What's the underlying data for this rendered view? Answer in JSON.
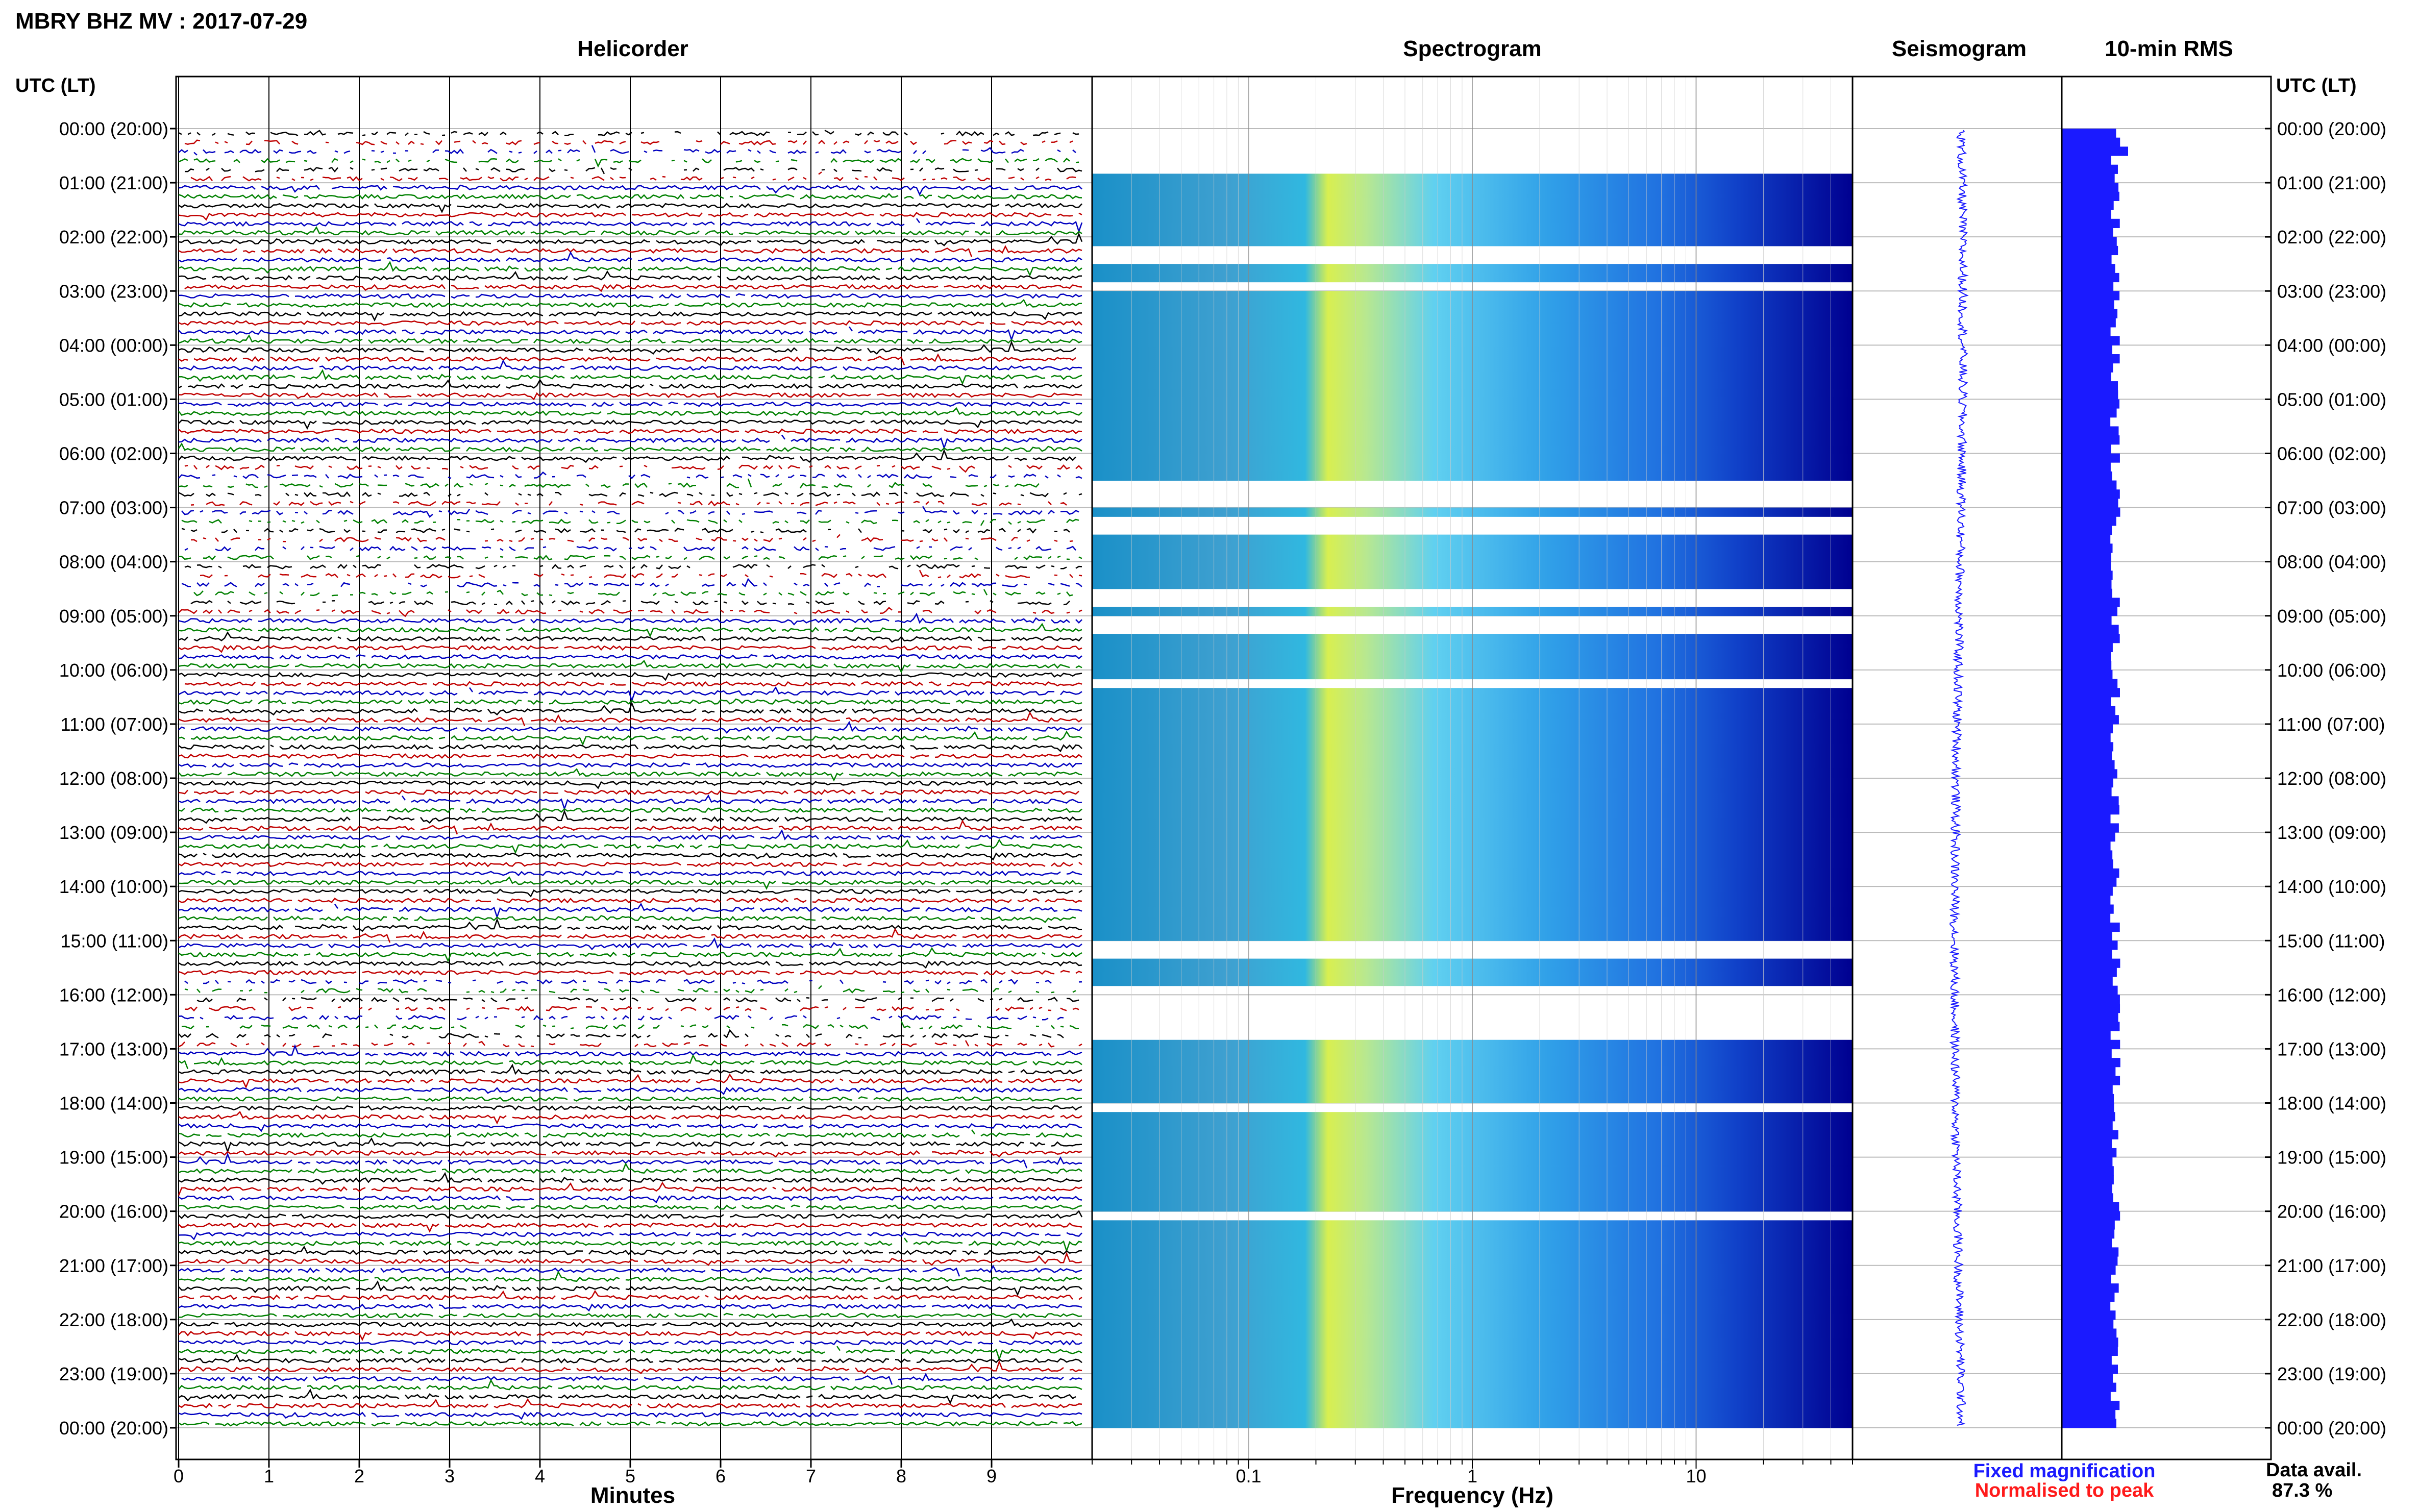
{
  "header": {
    "title": "MBRY BHZ MV : 2017-07-29"
  },
  "panels": {
    "helicorder": "Helicorder",
    "spectrogram": "Spectrogram",
    "seismogram": "Seismogram",
    "rms": "10-min RMS"
  },
  "axes": {
    "time_header_left": "UTC (LT)",
    "time_header_right": "UTC (LT)",
    "minutes_label": "Minutes",
    "frequency_label": "Frequency (Hz)",
    "minute_ticks": [
      "0",
      "1",
      "2",
      "3",
      "4",
      "5",
      "6",
      "7",
      "8",
      "9"
    ],
    "frequency_ticks": [
      "0.1",
      "1",
      "10"
    ],
    "hour_labels": [
      "00:00 (20:00)",
      "01:00 (21:00)",
      "02:00 (22:00)",
      "03:00 (23:00)",
      "04:00 (00:00)",
      "05:00 (01:00)",
      "06:00 (02:00)",
      "07:00 (03:00)",
      "08:00 (04:00)",
      "09:00 (05:00)",
      "10:00 (06:00)",
      "11:00 (07:00)",
      "12:00 (08:00)",
      "13:00 (09:00)",
      "14:00 (10:00)",
      "15:00 (11:00)",
      "16:00 (12:00)",
      "17:00 (13:00)",
      "18:00 (14:00)",
      "19:00 (15:00)",
      "20:00 (16:00)",
      "21:00 (17:00)",
      "22:00 (18:00)",
      "23:00 (19:00)",
      "00:00 (20:00)"
    ]
  },
  "legend": {
    "fixed": "Fixed magnification",
    "normalised": "Normalised to peak",
    "fixed_color": "#1a1aff",
    "normalised_color": "#ff1a1a"
  },
  "availability": {
    "label": "Data avail.",
    "value": "87.3 %"
  },
  "colors": {
    "trace_colors": [
      "#000000",
      "#c00000",
      "#0000c0",
      "#008000"
    ],
    "spectro_low": "#000090",
    "spectro_mid": "#00c0ff",
    "spectro_high": "#e8f040",
    "rms_bar": "#1a1aff"
  },
  "chart_data": {
    "type": "heatmap",
    "helicorder": {
      "x_unit": "minutes",
      "xlim": [
        0,
        10
      ],
      "rows_per_hour": 6,
      "hours": 24
    },
    "spectrogram": {
      "scale": "log",
      "xlim_hz": [
        0.02,
        50
      ]
    },
    "data_availability_pct": 87.3,
    "spectrogram_gaps_utc": [
      [
        "00:00",
        "00:50"
      ],
      [
        "02:10",
        "02:30"
      ],
      [
        "02:45",
        "03:00"
      ],
      [
        "06:30",
        "07:00"
      ],
      [
        "07:10",
        "07:30"
      ],
      [
        "08:30",
        "08:45"
      ],
      [
        "09:00",
        "09:15"
      ],
      [
        "10:05",
        "10:20"
      ],
      [
        "15:00",
        "15:20"
      ],
      [
        "15:50",
        "16:50"
      ],
      [
        "18:00",
        "18:05"
      ],
      [
        "20:00",
        "20:03"
      ]
    ]
  }
}
